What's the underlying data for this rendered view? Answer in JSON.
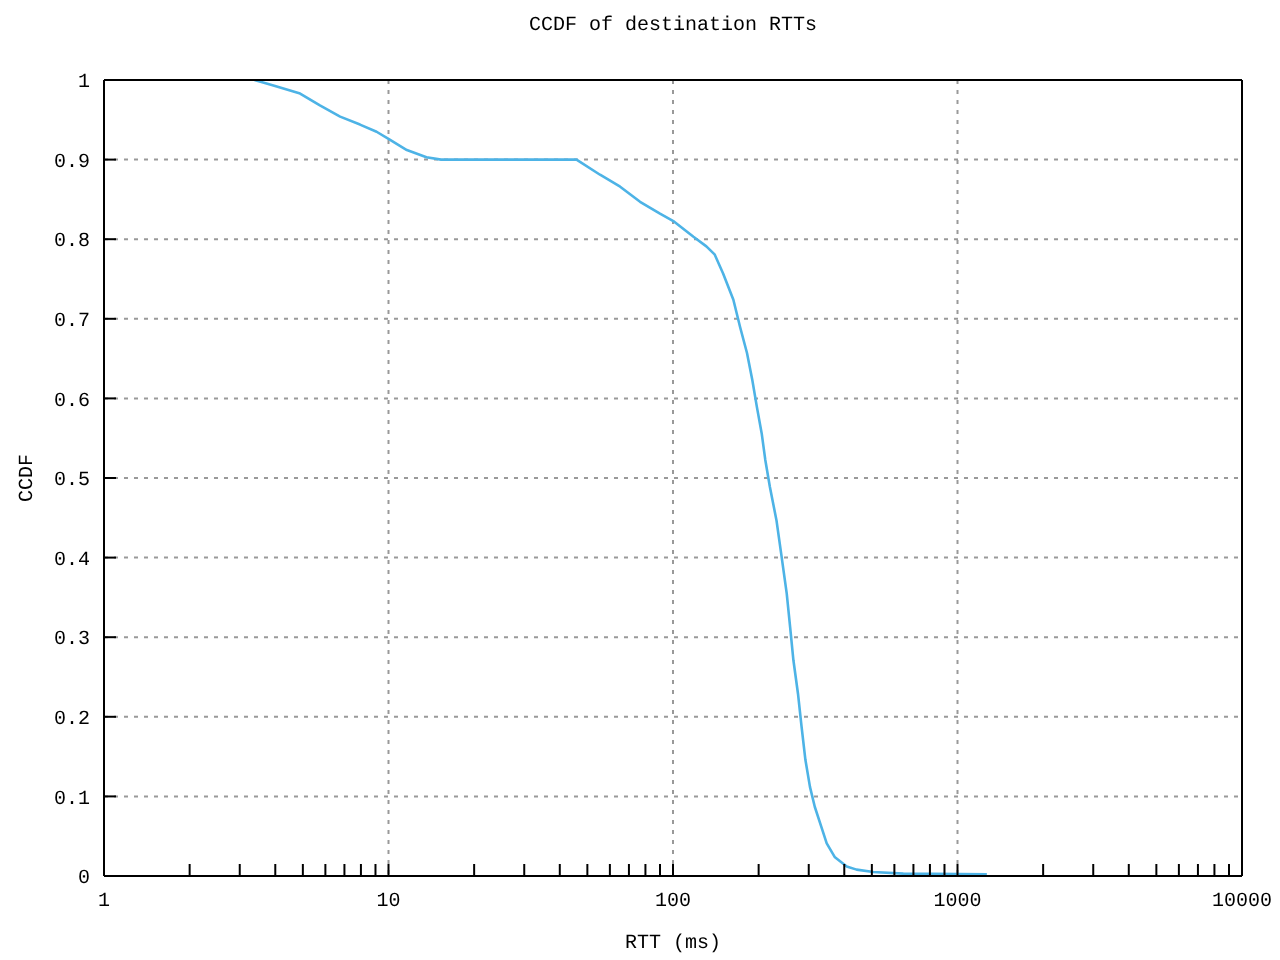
{
  "chart_data": {
    "type": "line",
    "title": "CCDF of destination RTTs",
    "xlabel": "RTT (ms)",
    "ylabel": "CCDF",
    "log": "x",
    "xlim": [
      1,
      10000
    ],
    "xticks": [
      1,
      {
        "value": 2,
        "label": null
      },
      {
        "value": 3,
        "label": null
      },
      {
        "value": 4,
        "label": null
      },
      {
        "value": 5,
        "label": null
      },
      {
        "value": 6,
        "label": null
      },
      {
        "value": 7,
        "label": null
      },
      {
        "value": 8,
        "label": null
      },
      {
        "value": 9,
        "label": null
      },
      10,
      {
        "value": 20,
        "label": null
      },
      {
        "value": 30,
        "label": null
      },
      {
        "value": 40,
        "label": null
      },
      {
        "value": 50,
        "label": null
      },
      {
        "value": 60,
        "label": null
      },
      {
        "value": 70,
        "label": null
      },
      {
        "value": 80,
        "label": null
      },
      {
        "value": 90,
        "label": null
      },
      100,
      {
        "value": 200,
        "label": null
      },
      {
        "value": 300,
        "label": null
      },
      {
        "value": 400,
        "label": null
      },
      {
        "value": 500,
        "label": null
      },
      {
        "value": 600,
        "label": null
      },
      {
        "value": 700,
        "label": null
      },
      {
        "value": 800,
        "label": null
      },
      {
        "value": 900,
        "label": null
      },
      1000,
      {
        "value": 2000,
        "label": null
      },
      {
        "value": 3000,
        "label": null
      },
      {
        "value": 4000,
        "label": null
      },
      {
        "value": 5000,
        "label": null
      },
      {
        "value": 6000,
        "label": null
      },
      {
        "value": 7000,
        "label": null
      },
      {
        "value": 8000,
        "label": null
      },
      {
        "value": 9000,
        "label": null
      },
      10000
    ],
    "ylim": [
      0,
      1
    ],
    "yticks": [
      0,
      0.1,
      0.2,
      0.3,
      0.4,
      0.5,
      0.6,
      0.7,
      0.8,
      0.9,
      1
    ],
    "grid": true,
    "marker": "none",
    "x": [
      3.38,
      3.94,
      4.89,
      5.74,
      6.76,
      7.94,
      9.08,
      10.1,
      11.6,
      13.6,
      15.3,
      45.8,
      55.4,
      65.2,
      76.6,
      90,
      101,
      118,
      131,
      140,
      150,
      163,
      172,
      182,
      190,
      197,
      205,
      211,
      219,
      231,
      240,
      251,
      258,
      265,
      275,
      283,
      292,
      303,
      315,
      332,
      347,
      370,
      408,
      442,
      506,
      645,
      1268
    ],
    "series": [
      {
        "color": "#4db3e6",
        "values": [
          1,
          0.993,
          0.983,
          0.968,
          0.954,
          0.944,
          0.935,
          0.925,
          0.912,
          0.903,
          0.9,
          0.9,
          0.881,
          0.866,
          0.847,
          0.832,
          0.822,
          0.803,
          0.791,
          0.781,
          0.757,
          0.724,
          0.69,
          0.657,
          0.623,
          0.59,
          0.556,
          0.523,
          0.489,
          0.447,
          0.405,
          0.355,
          0.313,
          0.271,
          0.229,
          0.188,
          0.146,
          0.112,
          0.087,
          0.062,
          0.041,
          0.024,
          0.012,
          0.008,
          0.005,
          0.003,
          0.002
        ]
      }
    ]
  }
}
